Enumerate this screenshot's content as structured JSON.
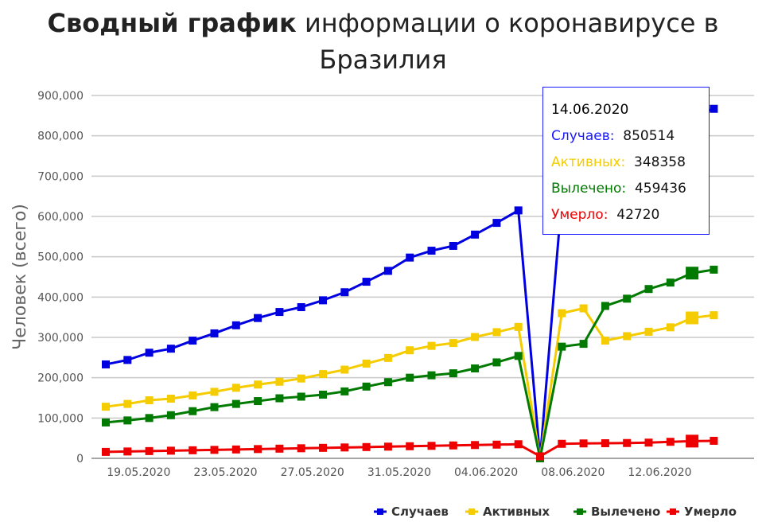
{
  "title_bold": "Сводный график",
  "title_rest": " информации о коронавирусе в Бразилия",
  "chart_data": {
    "type": "line",
    "title": "Сводный график информации о коронавирусе в Бразилия",
    "ylabel": "Человек (всего)",
    "xlabel": "",
    "ylim": [
      0,
      900000
    ],
    "yticks": [
      0,
      100000,
      200000,
      300000,
      400000,
      500000,
      600000,
      700000,
      800000,
      900000
    ],
    "ytick_labels": [
      "0",
      "100,000",
      "200,000",
      "300,000",
      "400,000",
      "500,000",
      "600,000",
      "700,000",
      "800,000",
      "900,000"
    ],
    "x": [
      "18.05.2020",
      "19.05.2020",
      "20.05.2020",
      "21.05.2020",
      "22.05.2020",
      "23.05.2020",
      "24.05.2020",
      "25.05.2020",
      "26.05.2020",
      "27.05.2020",
      "28.05.2020",
      "29.05.2020",
      "30.05.2020",
      "31.05.2020",
      "01.06.2020",
      "02.06.2020",
      "03.06.2020",
      "04.06.2020",
      "05.06.2020",
      "06.06.2020",
      "07.06.2020",
      "08.06.2020",
      "09.06.2020",
      "10.06.2020",
      "11.06.2020",
      "12.06.2020",
      "13.06.2020",
      "14.06.2020",
      "15.06.2020"
    ],
    "xtick_labels": [
      "19.05.2020",
      "23.05.2020",
      "27.05.2020",
      "31.05.2020",
      "04.06.2020",
      "08.06.2020",
      "12.06.2020"
    ],
    "grid": true,
    "legend": "bottom-right",
    "series": [
      {
        "name": "Случаев",
        "color": "#0000e0",
        "values": [
          233000,
          244000,
          262000,
          272000,
          292000,
          310000,
          330000,
          348000,
          363000,
          375000,
          392000,
          412000,
          438000,
          465000,
          498000,
          515000,
          527000,
          555000,
          584000,
          615000,
          0,
          645000,
          691000,
          707000,
          739000,
          772000,
          828000,
          850514,
          867000
        ]
      },
      {
        "name": "Активных",
        "color": "#f5cc00",
        "values": [
          128000,
          135000,
          144000,
          148000,
          156000,
          165000,
          175000,
          183000,
          190000,
          198000,
          209000,
          220000,
          235000,
          249000,
          268000,
          279000,
          286000,
          301000,
          313000,
          326000,
          0,
          360000,
          372000,
          292000,
          303000,
          314000,
          325000,
          348358,
          355000
        ]
      },
      {
        "name": "Вылечено",
        "color": "#007a00",
        "values": [
          89000,
          94000,
          100000,
          107000,
          117000,
          127000,
          135000,
          142000,
          149000,
          153000,
          158000,
          166000,
          178000,
          189000,
          200000,
          206000,
          211000,
          223000,
          238000,
          254000,
          0,
          277000,
          284000,
          378000,
          396000,
          420000,
          436000,
          459436,
          468000
        ]
      },
      {
        "name": "Умерло",
        "color": "#ee0000",
        "values": [
          16000,
          17000,
          18000,
          19000,
          20000,
          21000,
          22000,
          23000,
          24000,
          25000,
          26000,
          27000,
          28000,
          29000,
          30000,
          31000,
          32000,
          33000,
          34000,
          35000,
          5000,
          36000,
          37000,
          37500,
          38000,
          39000,
          41000,
          42720,
          43500
        ]
      }
    ],
    "highlight_index": 27
  },
  "tooltip": {
    "date": "14.06.2020",
    "rows": [
      {
        "label": "Случаев:",
        "value": "850514",
        "color": "#1a1aff"
      },
      {
        "label": "Активных:",
        "value": "348358",
        "color": "#f5cc00"
      },
      {
        "label": "Вылечено:",
        "value": "459436",
        "color": "#007a00"
      },
      {
        "label": "Умерло:",
        "value": "42720",
        "color": "#ee0000"
      }
    ]
  }
}
